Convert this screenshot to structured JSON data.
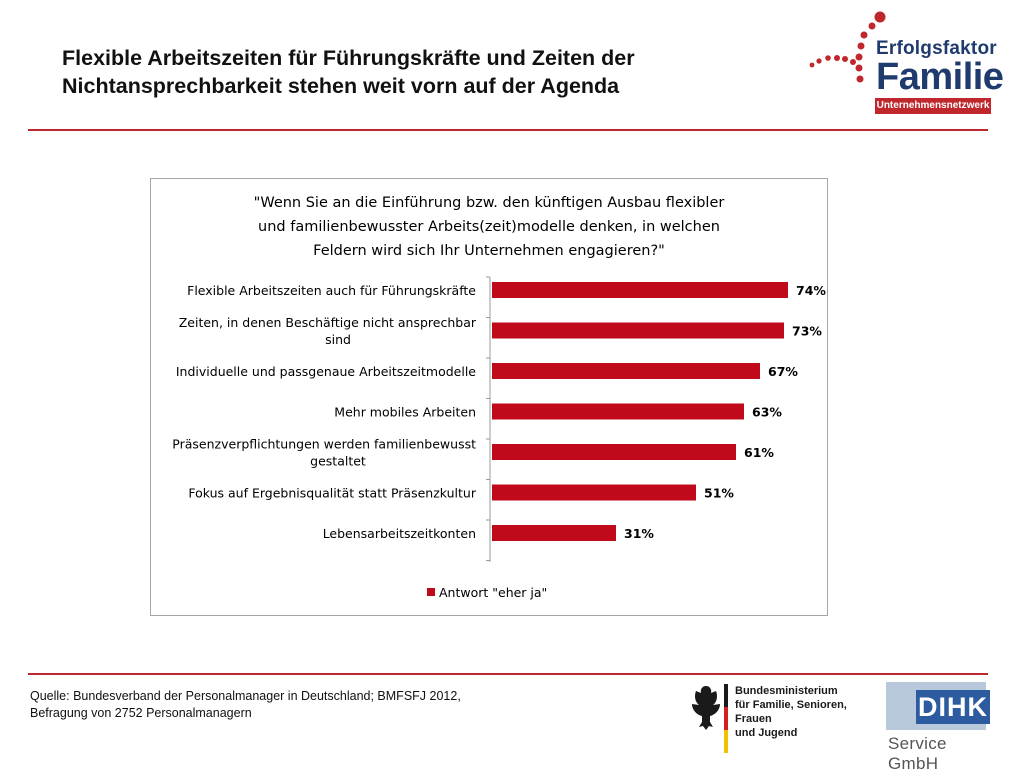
{
  "slide": {
    "title_line1": "Flexible Arbeitszeiten für Führungskräfte und Zeiten der",
    "title_line2": "Nichtansprechbarkeit stehen weit vorn auf der Agenda",
    "accent_color": "#c0272d"
  },
  "logo_top": {
    "line1": "Erfolgsfaktor",
    "line2": "Familie",
    "band": "Unternehmensnetzwerk",
    "text_color": "#1f3b6e"
  },
  "chart_data": {
    "type": "bar",
    "orientation": "horizontal",
    "title_lines": [
      "\"Wenn Sie an die Einführung bzw. den künftigen Ausbau flexibler",
      "und familienbewusster Arbeits(zeit)modelle denken, in welchen",
      "Feldern wird sich Ihr Unternehmen engagieren?\""
    ],
    "categories": [
      [
        "Flexible Arbeitszeiten auch für Führungskräfte"
      ],
      [
        "Zeiten, in denen Beschäftige nicht ansprechbar",
        "sind"
      ],
      [
        "Individuelle und passgenaue Arbeitszeitmodelle"
      ],
      [
        "Mehr mobiles Arbeiten"
      ],
      [
        "Präsenzverpflichtungen werden familienbewusst",
        "gestaltet"
      ],
      [
        "Fokus auf Ergebnisqualität statt Präsenzkultur"
      ],
      [
        "Lebensarbeitszeitkonten"
      ]
    ],
    "series": [
      {
        "name": "Antwort \"eher ja\"",
        "values": [
          74,
          73,
          67,
          63,
          61,
          51,
          31
        ],
        "value_labels": [
          "74%",
          "73%",
          "67%",
          "63%",
          "61%",
          "51%",
          "31%"
        ],
        "color": "#c00a1b"
      }
    ],
    "xlim": [
      0,
      100
    ],
    "grid": false,
    "legend_position": "bottom"
  },
  "footer": {
    "source_line1": "Quelle: Bundesverband der Personalmanager in Deutschland; BMFSFJ 2012,",
    "source_line2": "Befragung von 2752 Personalmanagern",
    "bmfsfj_text": "Bundesministerium\nfür Familie, Senioren, Frauen\nund Jugend",
    "dihk_text": "DIHK",
    "dihk_sub": "Service GmbH"
  }
}
